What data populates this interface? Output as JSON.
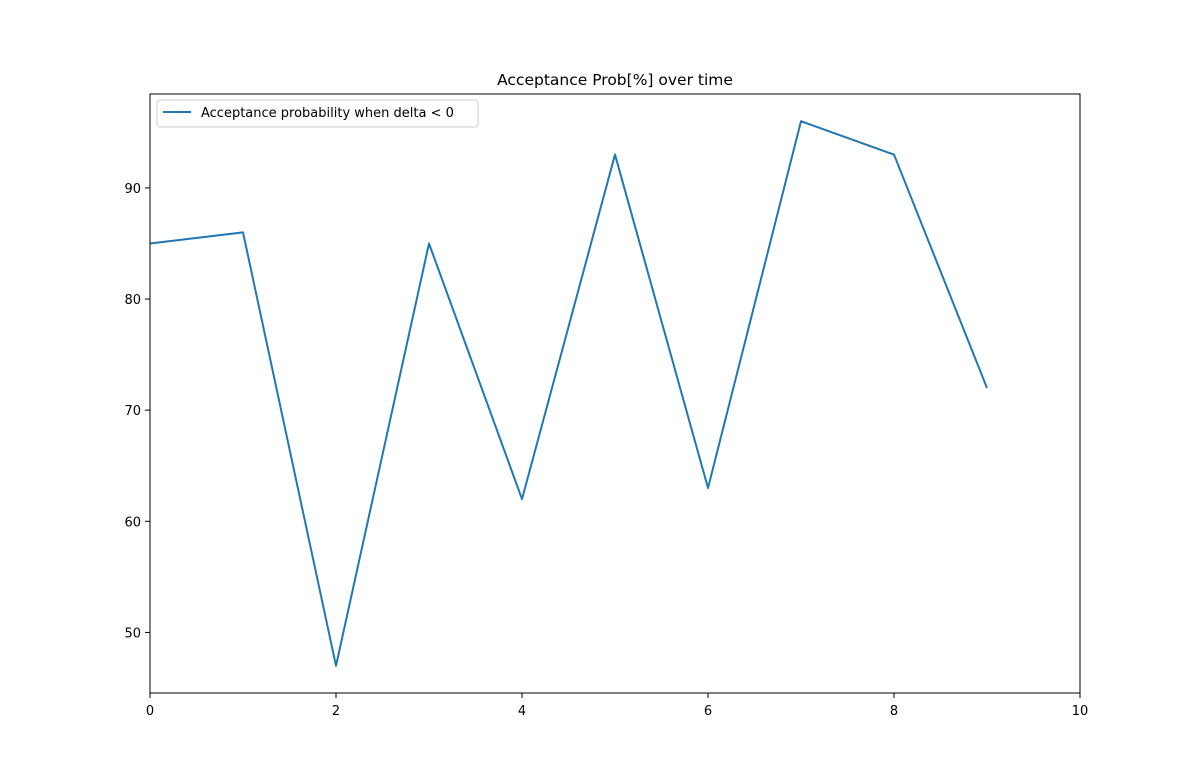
{
  "chart_data": {
    "type": "line",
    "title": "Acceptance Prob[%] over time",
    "xlabel": "",
    "ylabel": "",
    "xlim": [
      0,
      10
    ],
    "ylim": [
      44.55,
      98.45
    ],
    "xticks": [
      0,
      2,
      4,
      6,
      8,
      10
    ],
    "yticks": [
      50,
      60,
      70,
      80,
      90
    ],
    "grid": false,
    "legend_position": "upper-left",
    "series": [
      {
        "name": "Acceptance probability when delta < 0",
        "color": "#1f77b4",
        "x": [
          0,
          1,
          2,
          3,
          4,
          5,
          6,
          7,
          8,
          9
        ],
        "y": [
          85,
          86,
          47,
          85,
          62,
          93,
          63,
          96,
          93,
          72
        ]
      }
    ]
  }
}
